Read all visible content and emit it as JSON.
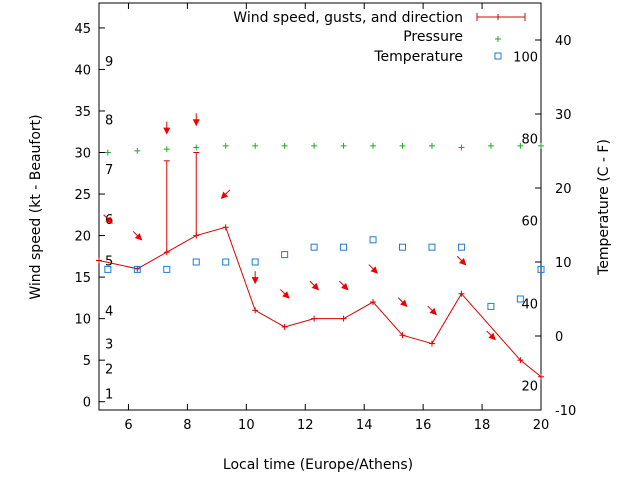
{
  "chart_data": {
    "type": "line",
    "xlabel": "Local time (Europe/Athens)",
    "ylabel": "Wind speed (kt - Beaufort)",
    "y2label": "Temperature (C - F)",
    "xlim": [
      5.0,
      20.0
    ],
    "ylim": [
      -1,
      48
    ],
    "y2lim": [
      -10,
      45
    ],
    "xticks": [
      "6",
      "8",
      "10",
      "12",
      "14",
      "16",
      "18",
      "20"
    ],
    "yticks": [
      "0",
      "5",
      "10",
      "15",
      "20",
      "25",
      "30",
      "35",
      "40",
      "45"
    ],
    "y2ticks": [
      "-10",
      "0",
      "10",
      "20",
      "30",
      "40"
    ],
    "beaufort_labels": [
      {
        "text": "1",
        "y": 1
      },
      {
        "text": "2",
        "y": 4
      },
      {
        "text": "3",
        "y": 7
      },
      {
        "text": "4",
        "y": 11
      },
      {
        "text": "5",
        "y": 17
      },
      {
        "text": "6",
        "y": 22
      },
      {
        "text": "7",
        "y": 28
      },
      {
        "text": "8",
        "y": 34
      },
      {
        "text": "9",
        "y": 41
      }
    ],
    "fahrenheit_labels": [
      {
        "text": "20",
        "y2": -6.7
      },
      {
        "text": "40",
        "y2": 4.4
      },
      {
        "text": "60",
        "y2": 15.6
      },
      {
        "text": "80",
        "y2": 26.7
      },
      {
        "text": "100",
        "y2": 37.8
      }
    ],
    "legend_position": "top-right",
    "legend": {
      "wind": "Wind speed, gusts, and direction",
      "pressure": "Pressure",
      "temperature": "Temperature"
    },
    "colors": {
      "wind": "#dd0000",
      "arrows": "#ee0000",
      "pressure": "#22aa22",
      "temperature": "#1f7ad6"
    },
    "series": [
      {
        "name": "Wind speed, gusts, and direction",
        "x": [
          5.0,
          6.3,
          7.3,
          8.3,
          9.3,
          10.3,
          11.3,
          12.3,
          13.3,
          14.3,
          15.3,
          16.3,
          17.3,
          19.3,
          20.0
        ],
        "y": [
          17.0,
          16.0,
          18.0,
          20.0,
          21.0,
          11.0,
          9.0,
          10.0,
          10.0,
          12.0,
          8.0,
          7.0,
          13.0,
          5.0,
          3.0
        ],
        "gust": [
          null,
          null,
          29.0,
          30.0,
          null,
          null,
          null,
          null,
          null,
          null,
          null,
          null,
          null,
          null,
          null
        ]
      },
      {
        "name": "Pressure",
        "x": [
          5.3,
          6.3,
          7.3,
          8.3,
          9.3,
          10.3,
          11.3,
          12.3,
          13.3,
          14.3,
          15.3,
          16.3,
          17.3,
          18.3,
          19.3,
          20.0
        ],
        "y": [
          30.0,
          30.2,
          30.4,
          30.6,
          30.8,
          30.8,
          30.8,
          30.8,
          30.8,
          30.8,
          30.8,
          30.8,
          30.6,
          30.8,
          30.8,
          30.8
        ]
      },
      {
        "name": "Temperature",
        "axis": "y2",
        "x": [
          5.3,
          6.3,
          7.3,
          8.3,
          9.3,
          10.3,
          11.3,
          12.3,
          13.3,
          14.3,
          15.3,
          16.3,
          17.3,
          18.3,
          19.3,
          20.0
        ],
        "y2": [
          9.0,
          9.0,
          9.0,
          10.0,
          10.0,
          10.0,
          11.0,
          12.0,
          12.0,
          13.0,
          12.0,
          12.0,
          12.0,
          4.0,
          5.0,
          9.0
        ]
      }
    ],
    "wind_directions": [
      {
        "x": 5.3,
        "y": 22.0,
        "dir": "NW"
      },
      {
        "x": 6.3,
        "y": 20.0,
        "dir": "NW"
      },
      {
        "x": 7.3,
        "y": 33.0,
        "dir": "N"
      },
      {
        "x": 8.3,
        "y": 34.0,
        "dir": "N"
      },
      {
        "x": 9.3,
        "y": 25.0,
        "dir": "NE"
      },
      {
        "x": 10.3,
        "y": 15.0,
        "dir": "N"
      },
      {
        "x": 11.3,
        "y": 13.0,
        "dir": "NW"
      },
      {
        "x": 12.3,
        "y": 14.0,
        "dir": "NW"
      },
      {
        "x": 13.3,
        "y": 14.0,
        "dir": "NW"
      },
      {
        "x": 14.3,
        "y": 16.0,
        "dir": "NW"
      },
      {
        "x": 15.3,
        "y": 12.0,
        "dir": "NW"
      },
      {
        "x": 16.3,
        "y": 11.0,
        "dir": "NW"
      },
      {
        "x": 17.3,
        "y": 17.0,
        "dir": "NW"
      },
      {
        "x": 18.3,
        "y": 8.0,
        "dir": "NW"
      }
    ]
  }
}
